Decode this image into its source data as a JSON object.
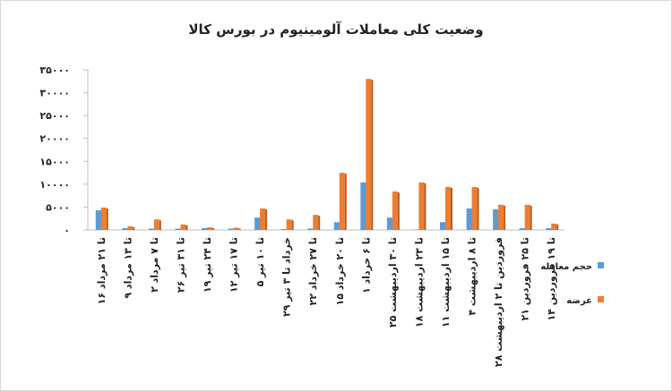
{
  "chart_data": {
    "type": "bar",
    "title": "وضعیت کلی معاملات آلومینیوم در بورس کالا",
    "categories": [
      "۱۶ تا ۲۱ مرداد",
      "۹ تا ۱۳ مرداد",
      "۲ تا ۷ مرداد",
      "۲۶ تا ۳۱ تیر",
      "۱۹ تا ۲۴ تیر",
      "۱۲ تا ۱۷ تیر",
      "۵ تا ۱۰ تیر",
      "۲۹ خرداد تا ۳ تیر",
      "۲۲ تا ۲۷ خرداد",
      "۱۵ تا ۲۰ خرداد",
      "۱ تا ۶ خرداد",
      "۲۵ تا ۳۰ اردیبهشت",
      "۱۸ تا ۲۳ اردیبهشت",
      "۱۱ تا ۱۵ اردیبهشت",
      "۴ تا ۸ اردیبهشت",
      "۲۸ فروردین تا ۲ اردیبهشت",
      "۲۱ تا ۲۵ فروردین",
      "۱۴ تا ۱۹ فروردین"
    ],
    "series": [
      {
        "name": "حجم معامله",
        "color": "#5b9bd5",
        "values": [
          4300,
          400,
          300,
          300,
          400,
          300,
          2700,
          200,
          300,
          1700,
          10400,
          2700,
          100,
          1700,
          4700,
          4500,
          400,
          400
        ]
      },
      {
        "name": "عرضه",
        "color": "#ed7d31",
        "values": [
          4900,
          800,
          2300,
          1200,
          600,
          500,
          4700,
          2300,
          3300,
          12500,
          33000,
          8400,
          10400,
          9400,
          9400,
          5500,
          5500,
          1400
        ]
      }
    ],
    "ylim": [
      0,
      35000
    ],
    "yticks": [
      {
        "value": 0,
        "label": "۰"
      },
      {
        "value": 5000,
        "label": "۵۰۰۰"
      },
      {
        "value": 10000,
        "label": "۱۰۰۰۰"
      },
      {
        "value": 15000,
        "label": "۱۵۰۰۰"
      },
      {
        "value": 20000,
        "label": "۲۰۰۰۰"
      },
      {
        "value": 25000,
        "label": "۲۵۰۰۰"
      },
      {
        "value": 30000,
        "label": "۳۰۰۰۰"
      },
      {
        "value": 35000,
        "label": "۳۵۰۰۰"
      }
    ],
    "grid": false,
    "legend": "right"
  }
}
